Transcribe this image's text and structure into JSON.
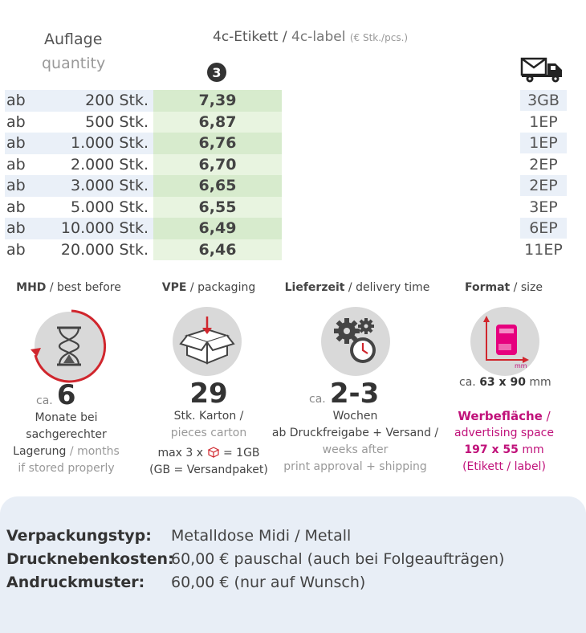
{
  "header": {
    "quantity_de": "Auflage",
    "quantity_en": "quantity",
    "label_de": "4c-Etikett",
    "label_sep": " / ",
    "label_en": "4c-label",
    "label_unit": "(€ Stk./pcs.)",
    "column_number": "3"
  },
  "rows": [
    {
      "prefix": "ab",
      "qty": "200 Stk.",
      "price": "7,39",
      "ship": "3GB"
    },
    {
      "prefix": "ab",
      "qty": "500 Stk.",
      "price": "6,87",
      "ship": "1EP"
    },
    {
      "prefix": "ab",
      "qty": "1.000 Stk.",
      "price": "6,76",
      "ship": "1EP"
    },
    {
      "prefix": "ab",
      "qty": "2.000 Stk.",
      "price": "6,70",
      "ship": "2EP"
    },
    {
      "prefix": "ab",
      "qty": "3.000 Stk.",
      "price": "6,65",
      "ship": "2EP"
    },
    {
      "prefix": "ab",
      "qty": "5.000 Stk.",
      "price": "6,55",
      "ship": "3EP"
    },
    {
      "prefix": "ab",
      "qty": "10.000 Stk.",
      "price": "6,49",
      "ship": "6EP"
    },
    {
      "prefix": "ab",
      "qty": "20.000 Stk.",
      "price": "6,46",
      "ship": "11EP"
    }
  ],
  "features": {
    "mhd": {
      "title_de": "MHD",
      "title_en": "best before",
      "prefix": "ca.",
      "value": "6",
      "line1": "Monate bei",
      "line2": "sachgerechter",
      "line3_de": "Lagerung",
      "line3_en": "months",
      "line4": "if stored properly"
    },
    "vpe": {
      "title_de": "VPE",
      "title_en": "packaging",
      "value": "29",
      "line1": "Stk. Karton /",
      "line2": "pieces carton",
      "line3a": "max 3 x",
      "line3b": "= 1GB",
      "line4": "(GB = Versandpaket)"
    },
    "delivery": {
      "title_de": "Lieferzeit",
      "title_en": "delivery time",
      "prefix": "ca.",
      "value": "2-3",
      "line1": "Wochen",
      "line2": "ab Druckfreigabe + Versand /",
      "line3": "weeks after",
      "line4": "print approval + shipping"
    },
    "format": {
      "title_de": "Format",
      "title_en": "size",
      "mm_label": "mm",
      "size_prefix": "ca.",
      "size_value": "63 x 90",
      "size_unit": "mm",
      "ad_de": "Werbefläche",
      "ad_en": "advertising space",
      "ad_size": "197 x 55",
      "ad_unit": "mm",
      "ad_note": "(Etikett / label)"
    }
  },
  "info": [
    {
      "key": "Verpackungstyp:",
      "value": "Metalldose Midi / Metall"
    },
    {
      "key": "Drucknebenkosten:",
      "value": "60,00 € pauschal (auch bei Folgeaufträgen)"
    },
    {
      "key": "Andruckmuster:",
      "value": "60,00 € (nur auf Wunsch)"
    }
  ],
  "colors": {
    "accent_red": "#d0262d",
    "accent_magenta": "#c0117a",
    "row_blue": "#eaf0f8",
    "price_green": "#d7ebcd"
  }
}
